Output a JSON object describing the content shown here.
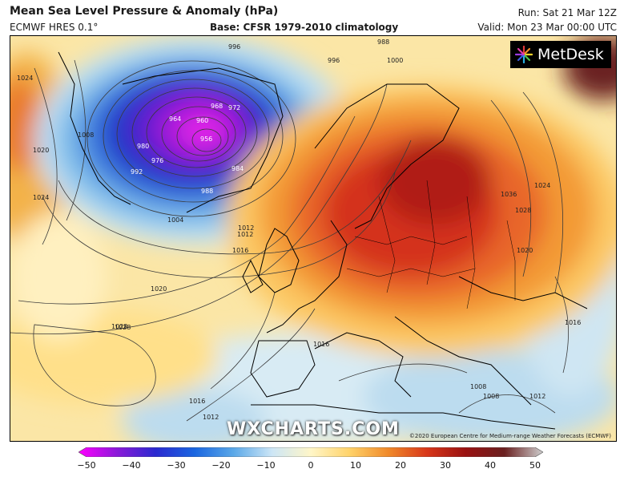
{
  "header": {
    "title": "Mean Sea Level Pressure & Anomaly (hPa)",
    "model": "ECMWF HRES 0.1°",
    "base": "Base: CFSR 1979-2010 climatology",
    "run": "Run: Sat 21 Mar 12Z",
    "valid": "Valid: Mon 23 Mar 00:00 UTC"
  },
  "logo": {
    "text": "MetDesk",
    "icon": "metdesk-starburst-icon"
  },
  "watermark": "WXCHARTS.COM",
  "copyright": "©2020 European Centre for Medium-range Weather Forecasts (ECMWF)",
  "isobar_labels": [
    "956",
    "960",
    "964",
    "968",
    "972",
    "976",
    "980",
    "984",
    "988",
    "992",
    "996",
    "1000",
    "1004",
    "1008",
    "1012",
    "1016",
    "1020",
    "1024",
    "1028",
    "1032",
    "1036",
    "988",
    "996",
    "1008",
    "1012",
    "1016",
    "1020",
    "1024",
    "1028",
    "1036",
    "1008",
    "1012",
    "1016",
    "1024",
    "1012",
    "1016",
    "1028",
    "1020"
  ],
  "legend": {
    "ticks": [
      "−50",
      "−40",
      "−30",
      "−20",
      "−10",
      "0",
      "10",
      "20",
      "30",
      "40",
      "50"
    ],
    "min": -50,
    "max": 50,
    "colors": [
      "#ff00ff",
      "#8a1ad8",
      "#2a2ad0",
      "#1a66e0",
      "#5aa8e8",
      "#cde6f6",
      "#fff6c8",
      "#ffd36a",
      "#f08a2a",
      "#d8371a",
      "#9a1212",
      "#6a2020",
      "#cfcfcf"
    ]
  }
}
